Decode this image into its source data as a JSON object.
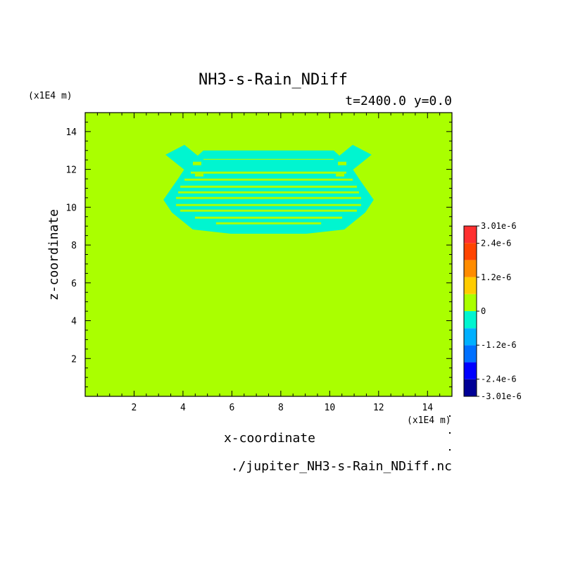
{
  "chart_data": {
    "type": "heatmap",
    "title": "NH3-s-Rain_NDiff",
    "subtitle": "t=2400.0 y=0.0",
    "xlabel": "x-coordinate",
    "ylabel": "z-coordinate",
    "x_unit": "(x1E4 m)",
    "y_unit": "(x1E4 m)",
    "source_file": "./jupiter_NH3-s-Rain_NDiff.nc",
    "xlim": [
      0,
      15
    ],
    "ylim": [
      0,
      15
    ],
    "x_ticks": [
      2,
      4,
      6,
      8,
      10,
      12,
      14
    ],
    "y_ticks": [
      2,
      4,
      6,
      8,
      10,
      12,
      14
    ],
    "background_value": 0,
    "negative_region": {
      "value": -6e-07,
      "x_extent": [
        3.2,
        11.8
      ],
      "z_extent": [
        8.6,
        13.0
      ],
      "color": "#00f5d0"
    },
    "colorbar": {
      "levels": [
        {
          "color": "#000096"
        },
        {
          "color": "#0000ff"
        },
        {
          "color": "#0070ff"
        },
        {
          "color": "#00b0ff"
        },
        {
          "color": "#00f5d0"
        },
        {
          "color": "#aaff00"
        },
        {
          "color": "#ffcc00"
        },
        {
          "color": "#ff8c00"
        },
        {
          "color": "#ff4400"
        },
        {
          "color": "#ff3030"
        }
      ],
      "tick_labels": [
        {
          "label": "3.01e-6",
          "value": 3.01e-06
        },
        {
          "label": "2.4e-6",
          "value": 2.4e-06
        },
        {
          "label": "1.2e-6",
          "value": 1.2e-06
        },
        {
          "label": "0",
          "value": 0
        },
        {
          "label": "-1.2e-6",
          "value": -1.2e-06
        },
        {
          "label": "-2.4e-6",
          "value": -2.4e-06
        },
        {
          "label": "-3.01e-6",
          "value": -3.01e-06
        }
      ]
    }
  },
  "colors": {
    "background_field": "#aaff00",
    "negative_field": "#00f5d0"
  }
}
